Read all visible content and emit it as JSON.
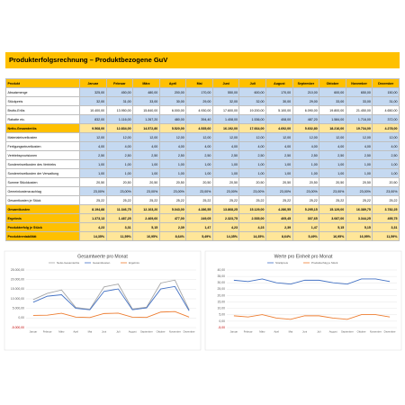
{
  "title": "Produkterfolgsrechnung – Produktbezogene GuV",
  "table": {
    "header": [
      "Produkt",
      "Januar",
      "Februar",
      "März",
      "April",
      "Mai",
      "Juni",
      "Juli",
      "August",
      "September",
      "Oktober",
      "November",
      "Dezember"
    ],
    "header_fill": "#ffc000",
    "rows": [
      {
        "label": "Absatzmenge",
        "fill": "#c5d9f1",
        "cells": [
          "325,00",
          "450,00",
          "480,00",
          "200,00",
          "170,00",
          "550,00",
          "600,00",
          "170,00",
          "210,00",
          "600,00",
          "650,00",
          "150,00"
        ]
      },
      {
        "label": "Stückpreis",
        "fill": "#c5d9f1",
        "cells": [
          "32,00",
          "31,00",
          "33,00",
          "30,00",
          "29,00",
          "32,00",
          "32,00",
          "30,00",
          "29,00",
          "33,00",
          "33,00",
          "31,00"
        ]
      },
      {
        "label": "Brutto-Erlös",
        "fill": "#ffffff",
        "cells": [
          "10.400,00",
          "13.950,00",
          "15.840,00",
          "6.000,00",
          "4.930,00",
          "17.600,00",
          "19.200,00",
          "5.100,00",
          "6.090,00",
          "19.800,00",
          "21.450,00",
          "4.650,00"
        ]
      },
      {
        "label": "Rabatte etc.",
        "fill": "#c5d9f1",
        "cells": [
          "832,00",
          "1.116,00",
          "1.267,20",
          "480,00",
          "394,40",
          "1.408,00",
          "1.536,00",
          "408,00",
          "487,20",
          "1.584,00",
          "1.716,00",
          "372,00"
        ]
      },
      {
        "label": "Netto-Gesamterlös",
        "fill": "#ffe699",
        "label_fill": "#ffc000",
        "bold": true,
        "cells": [
          "9.568,00",
          "12.834,00",
          "14.572,80",
          "5.520,00",
          "4.535,60",
          "16.192,00",
          "17.664,00",
          "4.692,00",
          "5.602,80",
          "18.216,00",
          "19.734,00",
          "4.278,00"
        ]
      },
      {
        "label": "Materialeinzelkosten",
        "fill": "#c5d9f1",
        "cells": [
          "12,00",
          "12,00",
          "12,00",
          "12,00",
          "12,00",
          "12,00",
          "12,00",
          "12,00",
          "12,00",
          "12,00",
          "12,00",
          "12,00"
        ]
      },
      {
        "label": "Fertigungseinzelkosten",
        "fill": "#c5d9f1",
        "cells": [
          "4,00",
          "4,00",
          "4,00",
          "4,00",
          "4,00",
          "4,00",
          "4,00",
          "4,00",
          "4,00",
          "4,00",
          "4,00",
          "4,00"
        ]
      },
      {
        "label": "Vertriebsprovisionen",
        "fill": "#c5d9f1",
        "cells": [
          "2,50",
          "2,50",
          "2,50",
          "2,50",
          "2,50",
          "2,50",
          "2,50",
          "2,50",
          "2,50",
          "2,50",
          "2,50",
          "2,50"
        ]
      },
      {
        "label": "Sondereinzelkosten des Vertriebs",
        "fill": "#c5d9f1",
        "cells": [
          "1,00",
          "1,00",
          "1,00",
          "1,00",
          "1,00",
          "1,00",
          "1,00",
          "1,00",
          "1,00",
          "1,00",
          "1,00",
          "1,00"
        ]
      },
      {
        "label": "Sondereinzelkosten der Verwaltung",
        "fill": "#c5d9f1",
        "cells": [
          "1,00",
          "1,00",
          "1,00",
          "1,00",
          "1,00",
          "1,00",
          "1,00",
          "1,00",
          "1,00",
          "1,00",
          "1,00",
          "1,00"
        ]
      },
      {
        "label": "Summe Stückkosten",
        "fill": "#ffffff",
        "cells": [
          "20,50",
          "20,50",
          "20,50",
          "20,50",
          "20,50",
          "20,50",
          "20,50",
          "20,50",
          "20,50",
          "20,50",
          "20,50",
          "20,50"
        ]
      },
      {
        "label": "Gemeinkostenzuschlag",
        "fill": "#c5d9f1",
        "cells": [
          "23,00%",
          "23,00%",
          "23,00%",
          "23,00%",
          "23,00%",
          "23,00%",
          "23,00%",
          "23,00%",
          "23,00%",
          "23,00%",
          "23,00%",
          "23,00%"
        ]
      },
      {
        "label": "Gesamtkosten je Stück",
        "fill": "#ffffff",
        "cells": [
          "25,22",
          "25,22",
          "25,22",
          "25,22",
          "25,22",
          "25,22",
          "25,22",
          "25,22",
          "25,22",
          "25,22",
          "25,22",
          "25,22"
        ]
      },
      {
        "label": "Gesamtkosten",
        "fill": "#ffe699",
        "label_fill": "#ffc000",
        "bold": true,
        "cells": [
          "8.194,88",
          "11.346,75",
          "12.103,20",
          "5.043,00",
          "4.286,55",
          "13.868,25",
          "15.129,00",
          "4.286,55",
          "5.295,15",
          "15.129,00",
          "16.389,75",
          "3.782,25"
        ]
      },
      {
        "label": "Ergebnis",
        "fill": "#ffe699",
        "label_fill": "#ffc000",
        "bold": true,
        "cells": [
          "1.373,13",
          "1.487,25",
          "2.469,60",
          "477,00",
          "249,05",
          "2.323,75",
          "2.535,00",
          "405,45",
          "307,65",
          "3.087,00",
          "3.344,25",
          "495,75"
        ]
      },
      {
        "label": "Produkterfolg je Stück",
        "fill": "#ffe699",
        "label_fill": "#ffc000",
        "bold": true,
        "cells": [
          "4,23",
          "3,31",
          "5,15",
          "2,39",
          "1,47",
          "4,23",
          "4,23",
          "2,39",
          "1,47",
          "5,15",
          "5,15",
          "3,31"
        ]
      },
      {
        "label": "Produktrentabilität",
        "fill": "#ffe699",
        "label_fill": "#ffc000",
        "bold": true,
        "cells": [
          "14,35%",
          "11,59%",
          "16,95%",
          "8,64%",
          "5,49%",
          "14,35%",
          "14,35%",
          "8,64%",
          "5,49%",
          "16,95%",
          "16,95%",
          "11,59%"
        ]
      }
    ]
  },
  "charts": [
    {
      "type": "line",
      "title": "Gesamtwerte pro Monat",
      "categories": [
        "Januar",
        "Februar",
        "März",
        "April",
        "Mai",
        "Juni",
        "Juli",
        "August",
        "September",
        "Oktober",
        "November",
        "Dezember"
      ],
      "ylim": [
        -5000,
        25000
      ],
      "yticks": [
        {
          "value": -5000,
          "label": "-5.000,00"
        },
        {
          "value": 0,
          "label": "0,00"
        },
        {
          "value": 5000,
          "label": "5.000,00"
        },
        {
          "value": 10000,
          "label": "10.000,00"
        },
        {
          "value": 15000,
          "label": "15.000,00"
        },
        {
          "value": 20000,
          "label": "20.000,00"
        },
        {
          "value": 25000,
          "label": "25.000,00"
        }
      ],
      "grid": true,
      "series": [
        {
          "name": "Netto-Gesamterlös",
          "color": "#a5a5a5",
          "values": [
            9568,
            12834,
            14572.8,
            5520,
            4535.6,
            16192,
            17664,
            4692,
            5602.8,
            18216,
            19734,
            4278
          ]
        },
        {
          "name": "Gesamtkosten",
          "color": "#4472c4",
          "values": [
            8194.88,
            11346.75,
            12103.2,
            5043,
            4286.55,
            13868.25,
            15129,
            4286.55,
            5295.15,
            15129,
            16389.75,
            3782.25
          ]
        },
        {
          "name": "Ergebnis",
          "color": "#ed7d31",
          "values": [
            1373.13,
            1487.25,
            2469.6,
            477,
            249.05,
            2323.75,
            2535,
            405.45,
            307.65,
            3087,
            3344.25,
            495.75
          ]
        }
      ]
    },
    {
      "type": "line",
      "title": "Werte pro Einheit pro Monat",
      "categories": [
        "Januar",
        "Februar",
        "März",
        "April",
        "Mai",
        "Juni",
        "Juli",
        "August",
        "September",
        "Oktober",
        "November",
        "Dezember"
      ],
      "ylim": [
        -5,
        40
      ],
      "yticks": [
        {
          "value": -5,
          "label": "-5,00"
        },
        {
          "value": 0,
          "label": "0,00"
        },
        {
          "value": 5,
          "label": "5,00"
        },
        {
          "value": 10,
          "label": "10,00"
        },
        {
          "value": 15,
          "label": "15,00"
        },
        {
          "value": 20,
          "label": "20,00"
        },
        {
          "value": 25,
          "label": "25,00"
        },
        {
          "value": 30,
          "label": "30,00"
        },
        {
          "value": 35,
          "label": "35,00"
        },
        {
          "value": 40,
          "label": "40,00"
        }
      ],
      "grid": true,
      "series": [
        {
          "name": "Stückpreis",
          "color": "#4472c4",
          "values": [
            32,
            31,
            33,
            30,
            29,
            32,
            32,
            30,
            29,
            33,
            33,
            31
          ]
        },
        {
          "name": "Produkterfolg je Stück",
          "color": "#ed7d31",
          "values": [
            4.23,
            3.31,
            5.15,
            2.39,
            1.47,
            4.23,
            4.23,
            2.39,
            1.47,
            5.15,
            5.15,
            3.31
          ]
        }
      ]
    }
  ]
}
